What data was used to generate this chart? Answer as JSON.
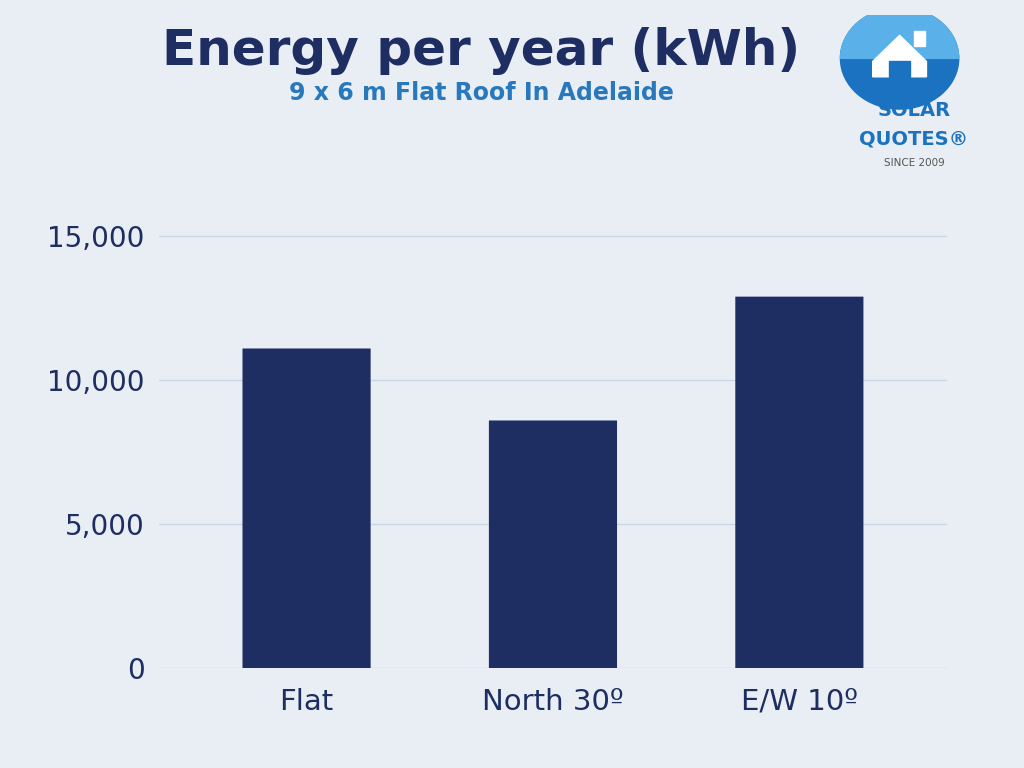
{
  "title": "Energy per year (kWh)",
  "subtitle": "9 x 6 m Flat Roof In Adelaide",
  "categories": [
    "Flat",
    "North 30º",
    "E/W 10º"
  ],
  "values": [
    11100,
    8600,
    12900
  ],
  "bar_color": "#1e2d62",
  "background_color": "#e8eef4",
  "title_color": "#1e2d62",
  "subtitle_color": "#2878be",
  "tick_color": "#1e2d62",
  "grid_color": "#c8d8e4",
  "ylim": [
    0,
    16000
  ],
  "yticks": [
    0,
    5000,
    10000,
    15000
  ],
  "ytick_labels": [
    "0",
    "5,000",
    "10,000",
    "15,000"
  ],
  "title_fontsize": 36,
  "subtitle_fontsize": 17,
  "tick_fontsize": 20,
  "xlabel_fontsize": 21,
  "bar_rounding": 0.08,
  "bar_width": 0.52
}
